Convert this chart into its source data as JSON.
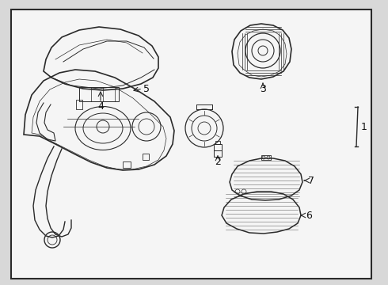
{
  "bg_color": "#d8d8d8",
  "box_color": "#f5f5f5",
  "line_color": "#2a2a2a",
  "label_color": "#111111",
  "lw": 0.9,
  "parts": {
    "cover_label": "4",
    "glass_label": "3",
    "screw_label": "2",
    "body_label": "5",
    "assembly_label": "1",
    "signal_top_label": "7",
    "signal_bot_label": "6"
  }
}
